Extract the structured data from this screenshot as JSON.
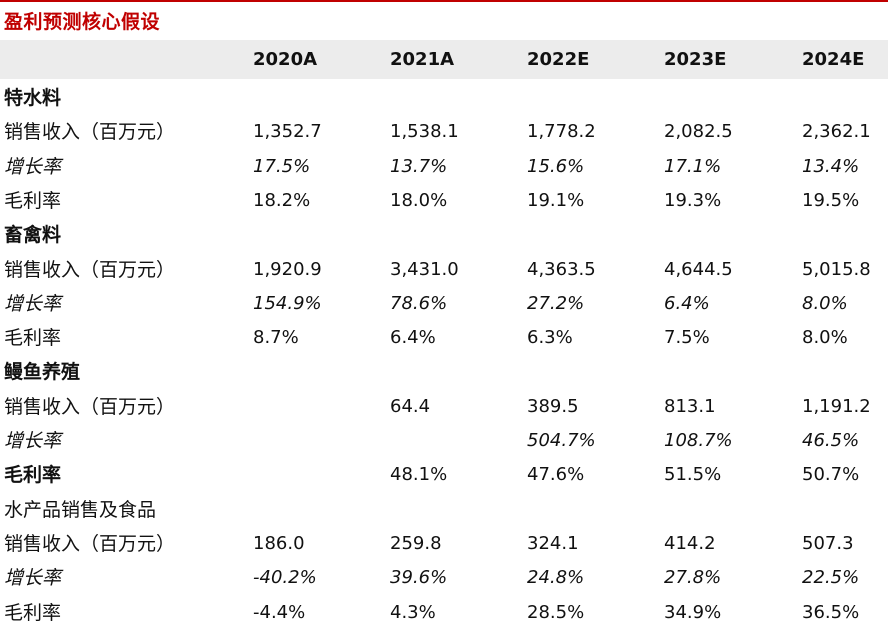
{
  "title": "盈利预测核心假设",
  "columns": [
    "2020A",
    "2021A",
    "2022E",
    "2023E",
    "2024E"
  ],
  "rows": [
    {
      "label": "特水料",
      "values": [
        "",
        "",
        "",
        "",
        ""
      ],
      "style": "bold"
    },
    {
      "label": "销售收入（百万元）",
      "values": [
        "1,352.7",
        "1,538.1",
        "1,778.2",
        "2,082.5",
        "2,362.1"
      ],
      "style": "normal"
    },
    {
      "label": "增长率",
      "values": [
        "17.5%",
        "13.7%",
        "15.6%",
        "17.1%",
        "13.4%"
      ],
      "style": "italic"
    },
    {
      "label": "毛利率",
      "values": [
        "18.2%",
        "18.0%",
        "19.1%",
        "19.3%",
        "19.5%"
      ],
      "style": "normal"
    },
    {
      "label": "畜禽料",
      "values": [
        "",
        "",
        "",
        "",
        ""
      ],
      "style": "bold"
    },
    {
      "label": "销售收入（百万元）",
      "values": [
        "1,920.9",
        "3,431.0",
        "4,363.5",
        "4,644.5",
        "5,015.8"
      ],
      "style": "normal"
    },
    {
      "label": "增长率",
      "values": [
        "154.9%",
        "78.6%",
        "27.2%",
        "6.4%",
        "8.0%"
      ],
      "style": "italic"
    },
    {
      "label": "毛利率",
      "values": [
        "8.7%",
        "6.4%",
        "6.3%",
        "7.5%",
        "8.0%"
      ],
      "style": "normal"
    },
    {
      "label": "鳗鱼养殖",
      "values": [
        "",
        "",
        "",
        "",
        ""
      ],
      "style": "bold"
    },
    {
      "label": "销售收入（百万元）",
      "values": [
        "",
        "64.4",
        "389.5",
        "813.1",
        "1,191.2"
      ],
      "style": "normal"
    },
    {
      "label": "增长率",
      "values": [
        "",
        "",
        "504.7%",
        "108.7%",
        "46.5%"
      ],
      "style": "italic"
    },
    {
      "label": "毛利率",
      "values": [
        "",
        "48.1%",
        "47.6%",
        "51.5%",
        "50.7%"
      ],
      "style": "bold"
    },
    {
      "label": "水产品销售及食品",
      "values": [
        "",
        "",
        "",
        "",
        ""
      ],
      "style": "normal"
    },
    {
      "label": "销售收入（百万元）",
      "values": [
        "186.0",
        "259.8",
        "324.1",
        "414.2",
        "507.3"
      ],
      "style": "normal"
    },
    {
      "label": "增长率",
      "values": [
        "-40.2%",
        "39.6%",
        "24.8%",
        "27.8%",
        "22.5%"
      ],
      "style": "italic"
    },
    {
      "label": "毛利率",
      "values": [
        "-4.4%",
        "4.3%",
        "28.5%",
        "34.9%",
        "36.5%"
      ],
      "style": "normal"
    }
  ]
}
